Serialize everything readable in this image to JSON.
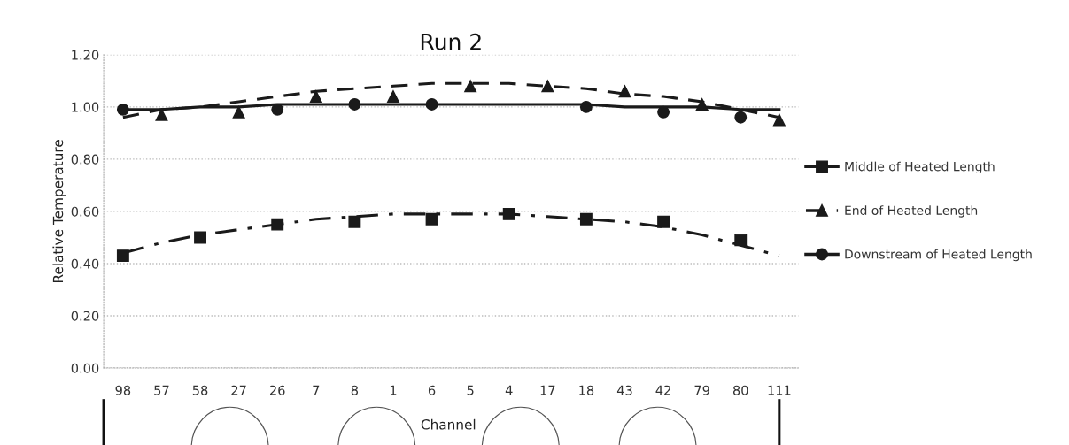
{
  "chart_data": {
    "type": "scatter",
    "title": "Run 2",
    "xlabel": "Channel",
    "ylabel": "Relative Temperature",
    "categories": [
      "98",
      "57",
      "58",
      "27",
      "26",
      "7",
      "8",
      "1",
      "6",
      "5",
      "4",
      "17",
      "18",
      "43",
      "42",
      "79",
      "80",
      "111"
    ],
    "series": [
      {
        "name": "Middle of Heated Length",
        "color": "#1a1a1a",
        "marker": "square",
        "line_style": "solid",
        "values": [
          0.43,
          null,
          0.5,
          null,
          0.55,
          null,
          0.56,
          null,
          0.57,
          null,
          0.59,
          null,
          0.57,
          null,
          0.56,
          null,
          0.49,
          null
        ]
      },
      {
        "name": "End of Heated Length",
        "color": "#1a1a1a",
        "marker": "triangle",
        "line_style": "dashed",
        "values": [
          null,
          0.97,
          null,
          0.98,
          null,
          1.04,
          null,
          1.04,
          null,
          1.08,
          null,
          1.08,
          null,
          1.06,
          null,
          1.01,
          null,
          0.95
        ]
      },
      {
        "name": "Downstream of Heated Length",
        "color": "#1a1a1a",
        "marker": "circle",
        "line_style": "solid",
        "values": [
          0.99,
          null,
          null,
          null,
          0.99,
          null,
          1.01,
          null,
          1.01,
          null,
          null,
          null,
          1.0,
          null,
          0.98,
          null,
          0.96,
          null
        ]
      },
      {
        "type": "line",
        "color": "#1a1a1a",
        "line_style": "dashdot",
        "marker": "none",
        "values": [
          0.44,
          0.48,
          0.51,
          0.53,
          0.55,
          0.57,
          0.58,
          0.59,
          0.59,
          0.59,
          0.59,
          0.58,
          0.57,
          0.56,
          0.54,
          0.51,
          0.47,
          0.43
        ]
      },
      {
        "type": "line",
        "color": "#1a1a1a",
        "line_style": "dashed",
        "marker": "none",
        "values": [
          0.96,
          0.99,
          1.0,
          1.02,
          1.04,
          1.06,
          1.07,
          1.08,
          1.09,
          1.09,
          1.09,
          1.08,
          1.07,
          1.05,
          1.04,
          1.02,
          0.99,
          0.96
        ]
      },
      {
        "type": "line",
        "color": "#1a1a1a",
        "line_style": "solid",
        "marker": "none",
        "values": [
          0.99,
          0.99,
          1.0,
          1.0,
          1.01,
          1.01,
          1.01,
          1.01,
          1.01,
          1.01,
          1.01,
          1.01,
          1.01,
          1.0,
          1.0,
          1.0,
          0.99,
          0.99
        ]
      }
    ],
    "ylim": [
      0,
      1.2
    ],
    "yticks": [
      {
        "value": 0,
        "label": "0.00"
      },
      {
        "value": 0.2,
        "label": "0.20"
      },
      {
        "value": 0.4,
        "label": "0.40"
      },
      {
        "value": 0.6,
        "label": "0.60"
      },
      {
        "value": 0.8,
        "label": "0.80"
      },
      {
        "value": 1.0,
        "label": "1.00"
      },
      {
        "value": 1.2,
        "label": "1.20"
      }
    ],
    "grid": "y",
    "legend": "right"
  }
}
